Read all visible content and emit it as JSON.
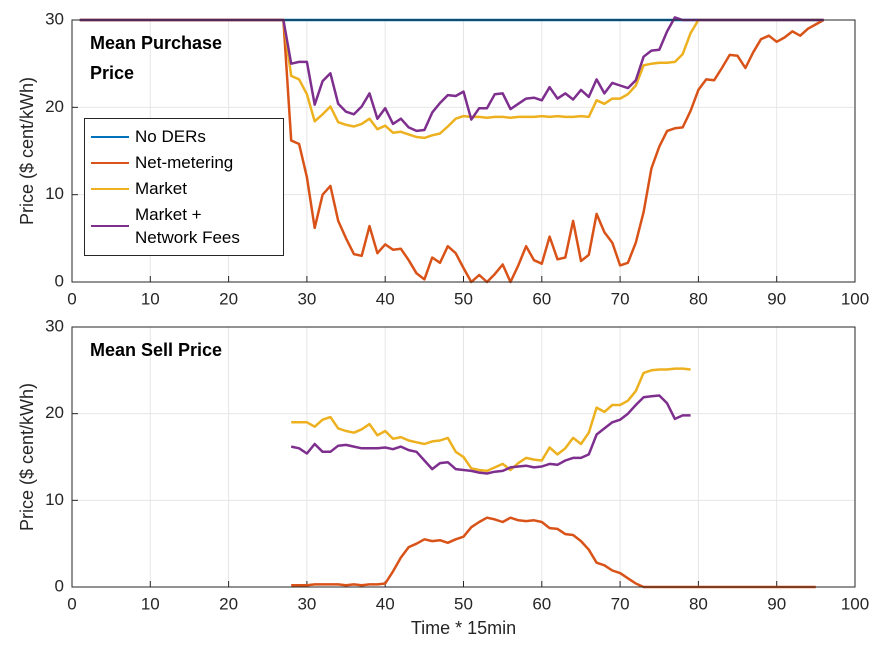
{
  "chart_data": [
    {
      "type": "line",
      "ylabel": "Price ($ cent/kWh)",
      "annotation_lines": [
        "Mean Purchase",
        "Price"
      ],
      "legend": "west",
      "x": [
        1,
        2,
        3,
        4,
        5,
        6,
        7,
        8,
        9,
        10,
        11,
        12,
        13,
        14,
        15,
        16,
        17,
        18,
        19,
        20,
        21,
        22,
        23,
        24,
        25,
        26,
        27,
        28,
        29,
        30,
        31,
        32,
        33,
        34,
        35,
        36,
        37,
        38,
        39,
        40,
        41,
        42,
        43,
        44,
        45,
        46,
        47,
        48,
        49,
        50,
        51,
        52,
        53,
        54,
        55,
        56,
        57,
        58,
        59,
        60,
        61,
        62,
        63,
        64,
        65,
        66,
        67,
        68,
        69,
        70,
        71,
        72,
        73,
        74,
        75,
        76,
        77,
        78,
        79,
        80,
        81,
        82,
        83,
        84,
        85,
        86,
        87,
        88,
        89,
        90,
        91,
        92,
        93,
        94,
        95,
        96
      ],
      "xlim": [
        0,
        100
      ],
      "xticks": [
        0,
        10,
        20,
        30,
        40,
        50,
        60,
        70,
        80,
        90,
        100
      ],
      "ylim": [
        0,
        30
      ],
      "yticks": [
        0,
        10,
        20,
        30
      ],
      "grid": true,
      "series": [
        {
          "name": "No DERs",
          "color": "#0072bd",
          "values": [
            30,
            30,
            30,
            30,
            30,
            30,
            30,
            30,
            30,
            30,
            30,
            30,
            30,
            30,
            30,
            30,
            30,
            30,
            30,
            30,
            30,
            30,
            30,
            30,
            30,
            30,
            30,
            30,
            30,
            30,
            30,
            30,
            30,
            30,
            30,
            30,
            30,
            30,
            30,
            30,
            30,
            30,
            30,
            30,
            30,
            30,
            30,
            30,
            30,
            30,
            30,
            30,
            30,
            30,
            30,
            30,
            30,
            30,
            30,
            30,
            30,
            30,
            30,
            30,
            30,
            30,
            30,
            30,
            30,
            30,
            30,
            30,
            30,
            30,
            30,
            30,
            30,
            30,
            30,
            30,
            30,
            30,
            30,
            30,
            30,
            30,
            30,
            30,
            30,
            30,
            30,
            30,
            30,
            30,
            30,
            30
          ]
        },
        {
          "name": "Net-metering",
          "color": "#d95319",
          "values": [
            30,
            30,
            30,
            30,
            30,
            30,
            30,
            30,
            30,
            30,
            30,
            30,
            30,
            30,
            30,
            30,
            30,
            30,
            30,
            30,
            30,
            30,
            30,
            30,
            30,
            30,
            30,
            16.2,
            15.8,
            12,
            6.2,
            10,
            11,
            7,
            5,
            3.2,
            3,
            6.4,
            3.3,
            4.3,
            3.7,
            3.8,
            2.5,
            1,
            0.3,
            2.8,
            2.2,
            4.1,
            3.3,
            1.6,
            0,
            0.8,
            0,
            0.9,
            2,
            0,
            1.9,
            4.1,
            2.5,
            2.1,
            5.2,
            2.6,
            2.8,
            7,
            2.4,
            3.1,
            7.8,
            5.7,
            4.5,
            1.9,
            2.2,
            4.5,
            8,
            13,
            15.5,
            17.3,
            17.6,
            17.7,
            19.6,
            22,
            23.2,
            23.1,
            24.5,
            26,
            25.9,
            24.5,
            26.3,
            27.8,
            28.2,
            27.5,
            28,
            28.7,
            28.2,
            29,
            29.5,
            30
          ]
        },
        {
          "name": "Market",
          "color": "#edb120",
          "values": [
            30,
            30,
            30,
            30,
            30,
            30,
            30,
            30,
            30,
            30,
            30,
            30,
            30,
            30,
            30,
            30,
            30,
            30,
            30,
            30,
            30,
            30,
            30,
            30,
            30,
            30,
            30,
            23.6,
            23.2,
            21.5,
            18.4,
            19.2,
            20.1,
            18.3,
            18,
            17.8,
            18.1,
            18.7,
            17.5,
            17.9,
            17.1,
            17.2,
            16.9,
            16.6,
            16.5,
            16.8,
            17,
            17.8,
            18.7,
            19,
            18.9,
            18.9,
            18.8,
            18.9,
            18.9,
            18.8,
            18.9,
            18.9,
            18.9,
            19,
            18.9,
            19,
            18.9,
            18.9,
            19,
            18.9,
            20.8,
            20.4,
            21,
            21,
            21.5,
            22.5,
            24.8,
            25,
            25.1,
            25.1,
            25.2,
            26.1,
            28.5,
            30,
            30,
            30,
            30,
            30,
            30,
            30,
            30,
            30,
            30,
            30,
            30,
            30,
            30,
            30,
            30,
            30
          ]
        },
        {
          "name": "Market + Network Fees",
          "color": "#7e2f8e",
          "values": [
            30,
            30,
            30,
            30,
            30,
            30,
            30,
            30,
            30,
            30,
            30,
            30,
            30,
            30,
            30,
            30,
            30,
            30,
            30,
            30,
            30,
            30,
            30,
            30,
            30,
            30,
            30,
            25,
            25.2,
            25.2,
            20.3,
            23,
            23.9,
            20.4,
            19.5,
            19.2,
            20.1,
            21.6,
            18.7,
            19.9,
            18.1,
            18.7,
            17.7,
            17.3,
            17.4,
            19.4,
            20.5,
            21.4,
            21.3,
            21.8,
            18.6,
            19.9,
            19.9,
            21.5,
            21.6,
            19.8,
            20.4,
            21,
            21.1,
            20.8,
            22.3,
            21,
            21.6,
            20.9,
            22,
            21.2,
            23.2,
            21.6,
            22.8,
            22.5,
            22.2,
            23.1,
            25.8,
            26.5,
            26.6,
            28.7,
            30.3,
            30,
            30,
            30,
            30,
            30,
            30,
            30,
            30,
            30,
            30,
            30,
            30,
            30,
            30,
            30,
            30,
            30,
            30,
            30
          ]
        }
      ]
    },
    {
      "type": "line",
      "ylabel": "Price ($ cent/kWh)",
      "xlabel": "Time * 15min",
      "annotation_lines": [
        "Mean Sell Price"
      ],
      "x": [
        28,
        29,
        30,
        31,
        32,
        33,
        34,
        35,
        36,
        37,
        38,
        39,
        40,
        41,
        42,
        43,
        44,
        45,
        46,
        47,
        48,
        49,
        50,
        51,
        52,
        53,
        54,
        55,
        56,
        57,
        58,
        59,
        60,
        61,
        62,
        63,
        64,
        65,
        66,
        67,
        68,
        69,
        70,
        71,
        72,
        73,
        74,
        75,
        76,
        77,
        78,
        79,
        80,
        81,
        82,
        83,
        84,
        85,
        86,
        87,
        88,
        89,
        90,
        91,
        92,
        93,
        94,
        95
      ],
      "xlim": [
        0,
        100
      ],
      "xticks": [
        0,
        10,
        20,
        30,
        40,
        50,
        60,
        70,
        80,
        90,
        100
      ],
      "ylim": [
        0,
        30
      ],
      "yticks": [
        0,
        10,
        20,
        30
      ],
      "grid": true,
      "series": [
        {
          "color": "#d95319",
          "values": [
            0.2,
            0.2,
            0.2,
            0.3,
            0.3,
            0.3,
            0.3,
            0.2,
            0.3,
            0.2,
            0.3,
            0.3,
            0.4,
            1.8,
            3.4,
            4.6,
            5,
            5.5,
            5.3,
            5.4,
            5.1,
            5.5,
            5.8,
            6.9,
            7.5,
            8,
            7.8,
            7.5,
            8,
            7.7,
            7.6,
            7.7,
            7.5,
            6.8,
            6.7,
            6.1,
            6,
            5.3,
            4.3,
            2.8,
            2.5,
            1.9,
            1.6,
            1,
            0.4,
            0,
            0,
            0,
            0,
            0,
            0,
            0,
            0,
            0,
            0,
            0,
            0,
            0,
            0,
            0,
            0,
            0,
            0,
            0,
            0,
            0,
            0,
            0
          ]
        },
        {
          "color": "#edb120",
          "values": [
            19,
            19,
            19,
            18.5,
            19.3,
            19.6,
            18.3,
            18,
            17.8,
            18.2,
            18.8,
            17.5,
            18,
            17.1,
            17.3,
            16.9,
            16.7,
            16.5,
            16.8,
            16.9,
            17.2,
            15.6,
            15,
            13.7,
            13.5,
            13.4,
            13.8,
            14.2,
            13.5,
            14.3,
            14.9,
            14.7,
            14.6,
            16.1,
            15.3,
            16,
            17.2,
            16.5,
            17.8,
            20.7,
            20.2,
            21,
            21,
            21.5,
            22.6,
            24.7,
            25,
            25.1,
            25.1,
            25.2,
            25.2,
            25.1,
            null,
            null,
            null,
            null,
            null,
            null,
            null,
            null,
            null,
            null,
            null,
            null,
            null,
            null,
            null,
            null
          ]
        },
        {
          "color": "#7e2f8e",
          "values": [
            16.2,
            16,
            15.4,
            16.5,
            15.6,
            15.6,
            16.3,
            16.4,
            16.2,
            16,
            16,
            16,
            16.1,
            15.9,
            16.2,
            15.8,
            15.6,
            14.6,
            13.6,
            14.3,
            14.4,
            13.6,
            13.5,
            13.4,
            13.2,
            13.1,
            13.3,
            13.4,
            13.8,
            13.9,
            14,
            13.8,
            13.9,
            14.2,
            14.1,
            14.6,
            14.9,
            14.9,
            15.3,
            17.6,
            18.3,
            19,
            19.3,
            20,
            21,
            21.9,
            22,
            22.1,
            21.2,
            19.4,
            19.8,
            19.8,
            null,
            null,
            null,
            null,
            null,
            null,
            null,
            null,
            null,
            null,
            null,
            null,
            null,
            null,
            null,
            null
          ]
        }
      ]
    }
  ]
}
